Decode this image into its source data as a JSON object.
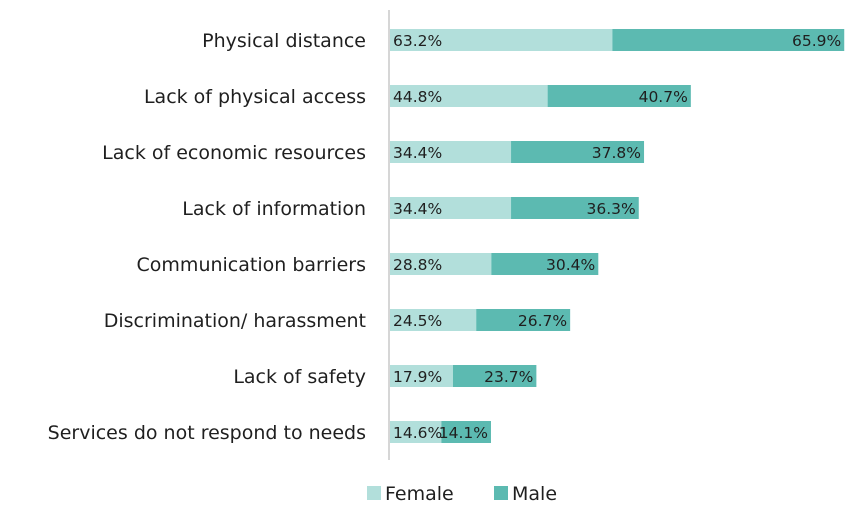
{
  "header_fragment": "",
  "chart_data": {
    "type": "bar",
    "orientation": "horizontal",
    "stacked": true,
    "categories": [
      "Physical distance",
      "Lack of physical access",
      "Lack of economic resources",
      "Lack of information",
      "Communication barriers",
      "Discrimination/ harassment",
      "Lack of safety",
      "Services do not respond to needs"
    ],
    "series": [
      {
        "name": "Female",
        "color": "#b2dfdb",
        "values": [
          63.2,
          44.8,
          34.4,
          34.4,
          28.8,
          24.5,
          17.9,
          14.6
        ],
        "labels": [
          "63.2%",
          "44.8%",
          "34.4%",
          "34.4%",
          "28.8%",
          "24.5%",
          "17.9%",
          "14.6%"
        ]
      },
      {
        "name": "Male",
        "color": "#5cbab1",
        "values": [
          65.9,
          40.7,
          37.8,
          36.3,
          30.4,
          26.7,
          23.7,
          14.1
        ],
        "labels": [
          "65.9%",
          "40.7%",
          "37.8%",
          "36.3%",
          "30.4%",
          "26.7%",
          "23.7%",
          "14.1%"
        ]
      }
    ],
    "legend": [
      "Female",
      "Male"
    ],
    "legend_position": "bottom",
    "xlim": [
      0,
      135
    ],
    "grid": false,
    "title": "",
    "xlabel": "",
    "ylabel": ""
  }
}
